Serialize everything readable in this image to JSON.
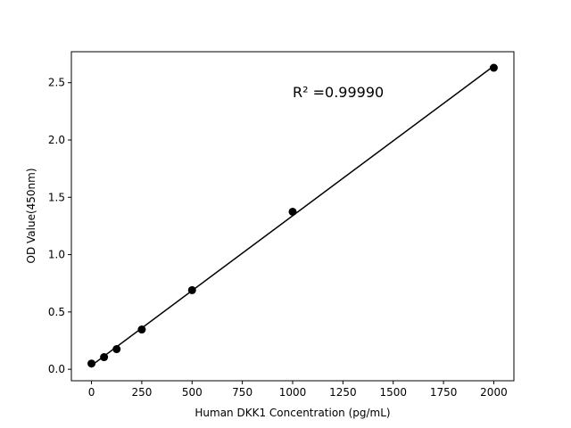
{
  "chart_data": {
    "type": "scatter",
    "title": "",
    "xlabel": "Human DKK1 Concentration (pg/mL)",
    "ylabel": "OD Value(450nm)",
    "xlim": [
      -100,
      2100
    ],
    "ylim": [
      -0.1,
      2.77
    ],
    "xticks": [
      0,
      250,
      500,
      750,
      1000,
      1250,
      1500,
      1750,
      2000
    ],
    "yticks": [
      0.0,
      0.5,
      1.0,
      1.5,
      2.0,
      2.5
    ],
    "ytick_labels": [
      "0.0",
      "0.5",
      "1.0",
      "1.5",
      "2.0",
      "2.5"
    ],
    "x": [
      0,
      62.5,
      125,
      250,
      500,
      1000,
      2000
    ],
    "y": [
      0.05,
      0.106,
      0.176,
      0.347,
      0.69,
      1.374,
      2.63
    ],
    "fit_line": "linear",
    "annotation": "R² =0.99990",
    "grid": false,
    "colors": {
      "points": "#000000",
      "line": "#000000"
    }
  }
}
